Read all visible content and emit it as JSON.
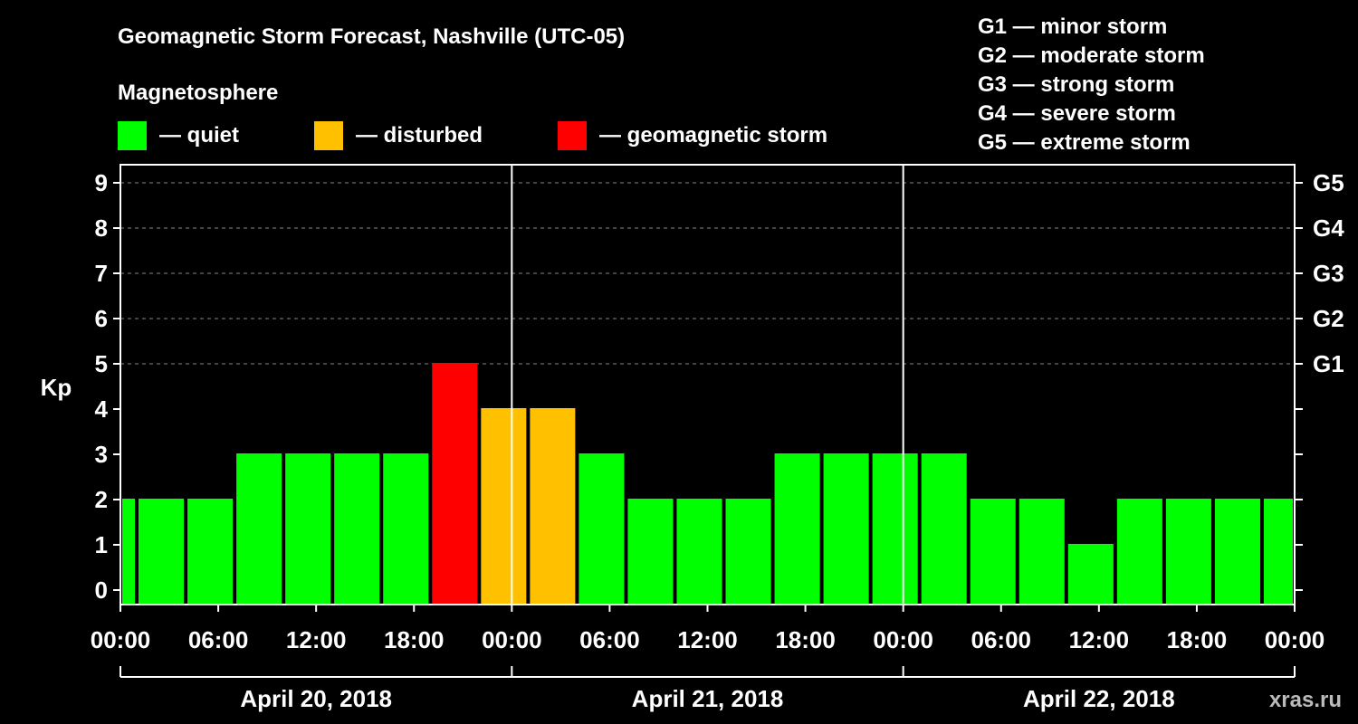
{
  "chart_data": {
    "type": "bar",
    "title": "Geomagnetic Storm Forecast, Nashville (UTC-05)",
    "legend_title": "Magnetosphere",
    "legend": [
      {
        "label": "— quiet",
        "color": "#00ff00"
      },
      {
        "label": "— disturbed",
        "color": "#ffc000"
      },
      {
        "label": "— geomagnetic storm",
        "color": "#ff0000"
      }
    ],
    "storm_scale": [
      "G1 — minor storm",
      "G2 — moderate storm",
      "G3 — strong storm",
      "G4 — severe storm",
      "G5 — extreme storm"
    ],
    "ylabel": "Kp",
    "ylim": [
      0,
      9
    ],
    "y_ticks": [
      "0",
      "1",
      "2",
      "3",
      "4",
      "5",
      "6",
      "7",
      "8",
      "9"
    ],
    "right_ticks": [
      {
        "kp": 5,
        "label": "G1"
      },
      {
        "kp": 6,
        "label": "G2"
      },
      {
        "kp": 7,
        "label": "G3"
      },
      {
        "kp": 8,
        "label": "G4"
      },
      {
        "kp": 9,
        "label": "G5"
      }
    ],
    "x_range_hours": [
      0,
      72
    ],
    "x_ticks": [
      {
        "hour": 0,
        "label": "00:00"
      },
      {
        "hour": 6,
        "label": "06:00"
      },
      {
        "hour": 12,
        "label": "12:00"
      },
      {
        "hour": 18,
        "label": "18:00"
      },
      {
        "hour": 24,
        "label": "00:00"
      },
      {
        "hour": 30,
        "label": "06:00"
      },
      {
        "hour": 36,
        "label": "12:00"
      },
      {
        "hour": 42,
        "label": "18:00"
      },
      {
        "hour": 48,
        "label": "00:00"
      },
      {
        "hour": 54,
        "label": "06:00"
      },
      {
        "hour": 60,
        "label": "12:00"
      },
      {
        "hour": 66,
        "label": "18:00"
      },
      {
        "hour": 72,
        "label": "00:00"
      }
    ],
    "days": [
      "April 20, 2018",
      "April 21, 2018",
      "April 22, 2018"
    ],
    "day_boundaries_hours": [
      24,
      48
    ],
    "bars": [
      {
        "start": 0,
        "end": 1,
        "kp": 2,
        "level": "quiet"
      },
      {
        "start": 1,
        "end": 4,
        "kp": 2,
        "level": "quiet"
      },
      {
        "start": 4,
        "end": 7,
        "kp": 2,
        "level": "quiet"
      },
      {
        "start": 7,
        "end": 10,
        "kp": 3,
        "level": "quiet"
      },
      {
        "start": 10,
        "end": 13,
        "kp": 3,
        "level": "quiet"
      },
      {
        "start": 13,
        "end": 16,
        "kp": 3,
        "level": "quiet"
      },
      {
        "start": 16,
        "end": 19,
        "kp": 3,
        "level": "quiet"
      },
      {
        "start": 19,
        "end": 22,
        "kp": 5,
        "level": "storm"
      },
      {
        "start": 22,
        "end": 25,
        "kp": 4,
        "level": "disturbed"
      },
      {
        "start": 25,
        "end": 28,
        "kp": 4,
        "level": "disturbed"
      },
      {
        "start": 28,
        "end": 31,
        "kp": 3,
        "level": "quiet"
      },
      {
        "start": 31,
        "end": 34,
        "kp": 2,
        "level": "quiet"
      },
      {
        "start": 34,
        "end": 37,
        "kp": 2,
        "level": "quiet"
      },
      {
        "start": 37,
        "end": 40,
        "kp": 2,
        "level": "quiet"
      },
      {
        "start": 40,
        "end": 43,
        "kp": 3,
        "level": "quiet"
      },
      {
        "start": 43,
        "end": 46,
        "kp": 3,
        "level": "quiet"
      },
      {
        "start": 46,
        "end": 49,
        "kp": 3,
        "level": "quiet"
      },
      {
        "start": 49,
        "end": 52,
        "kp": 3,
        "level": "quiet"
      },
      {
        "start": 52,
        "end": 55,
        "kp": 2,
        "level": "quiet"
      },
      {
        "start": 55,
        "end": 58,
        "kp": 2,
        "level": "quiet"
      },
      {
        "start": 58,
        "end": 61,
        "kp": 1,
        "level": "quiet"
      },
      {
        "start": 61,
        "end": 64,
        "kp": 2,
        "level": "quiet"
      },
      {
        "start": 64,
        "end": 67,
        "kp": 2,
        "level": "quiet"
      },
      {
        "start": 67,
        "end": 70,
        "kp": 2,
        "level": "quiet"
      },
      {
        "start": 70,
        "end": 72,
        "kp": 2,
        "level": "quiet"
      }
    ],
    "level_colors": {
      "quiet": "#00ff00",
      "disturbed": "#ffc000",
      "storm": "#ff0000"
    },
    "grid": true,
    "watermark": "xras.ru"
  }
}
